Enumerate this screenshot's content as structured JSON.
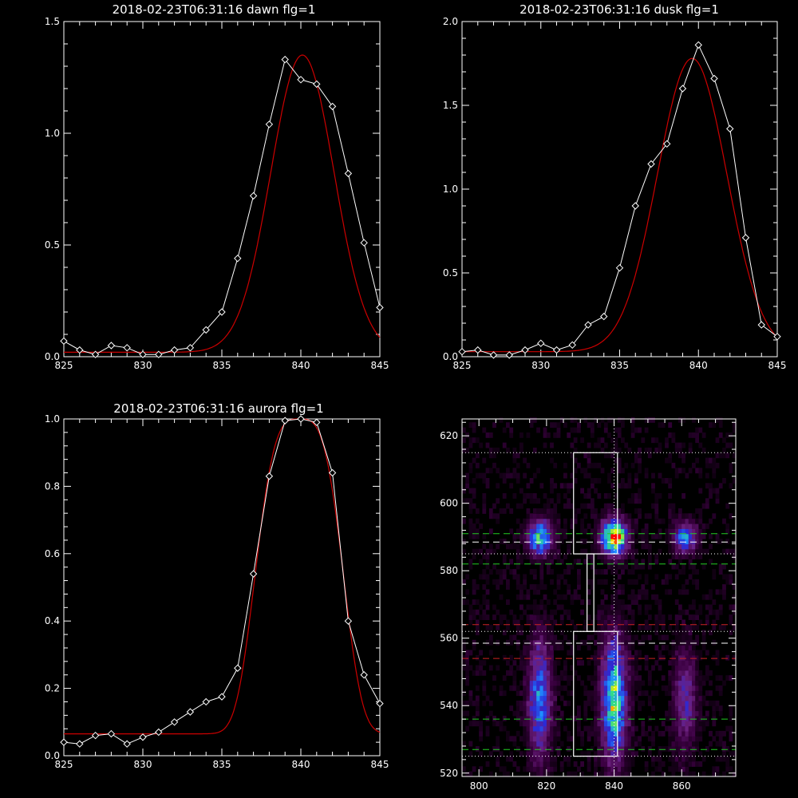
{
  "chart_data": [
    {
      "id": "dawn",
      "type": "line",
      "title": "2018-02-23T06:31:16 dawn flg=1",
      "xlim": [
        825,
        845
      ],
      "ylim": [
        0,
        1.5
      ],
      "xticks": [
        825,
        830,
        835,
        840,
        845
      ],
      "yticks": [
        0.0,
        0.5,
        1.0,
        1.5
      ],
      "ytick_labels": [
        "0.0",
        "0.5",
        "1.0",
        "1.5"
      ],
      "series": [
        {
          "role": "data",
          "color": "#ffffff",
          "marker": "diamond",
          "x": [
            825,
            826,
            827,
            828,
            829,
            830,
            831,
            832,
            833,
            834,
            835,
            836,
            837,
            838,
            839,
            840,
            841,
            842,
            843,
            844,
            845
          ],
          "y": [
            0.07,
            0.03,
            0.01,
            0.05,
            0.04,
            0.01,
            0.01,
            0.03,
            0.04,
            0.12,
            0.2,
            0.44,
            0.72,
            1.04,
            1.33,
            1.24,
            1.22,
            1.12,
            0.82,
            0.51,
            0.22
          ]
        },
        {
          "role": "fit",
          "color": "#cc0000",
          "model": "gaussian",
          "amp": 1.33,
          "center": 840.1,
          "sigma": 2.0,
          "offset": 0.02
        }
      ]
    },
    {
      "id": "dusk",
      "type": "line",
      "title": "2018-02-23T06:31:16 dusk flg=1",
      "xlim": [
        825,
        845
      ],
      "ylim": [
        0,
        2.0
      ],
      "xticks": [
        825,
        830,
        835,
        840,
        845
      ],
      "yticks": [
        0.0,
        0.5,
        1.0,
        1.5,
        2.0
      ],
      "ytick_labels": [
        "0.0",
        "0.5",
        "1.0",
        "1.5",
        "2.0"
      ],
      "series": [
        {
          "role": "data",
          "color": "#ffffff",
          "marker": "diamond",
          "x": [
            825,
            826,
            827,
            828,
            829,
            830,
            831,
            832,
            833,
            834,
            835,
            836,
            837,
            838,
            839,
            840,
            841,
            842,
            843,
            844,
            845
          ],
          "y": [
            0.03,
            0.04,
            0.01,
            0.01,
            0.04,
            0.08,
            0.04,
            0.07,
            0.19,
            0.24,
            0.53,
            0.9,
            1.15,
            1.27,
            1.6,
            1.86,
            1.66,
            1.36,
            0.71,
            0.19,
            0.12
          ]
        },
        {
          "role": "fit",
          "color": "#cc0000",
          "model": "gaussian",
          "amp": 1.75,
          "center": 839.6,
          "sigma": 2.2,
          "offset": 0.03
        }
      ]
    },
    {
      "id": "aurora",
      "type": "line",
      "title": "2018-02-23T06:31:16 aurora flg=1",
      "xlim": [
        825,
        845
      ],
      "ylim": [
        0,
        1.0
      ],
      "xticks": [
        825,
        830,
        835,
        840,
        845
      ],
      "yticks": [
        0.0,
        0.2,
        0.4,
        0.6,
        0.8,
        1.0
      ],
      "ytick_labels": [
        "0.0",
        "0.2",
        "0.4",
        "0.6",
        "0.8",
        "1.0"
      ],
      "series": [
        {
          "role": "data",
          "color": "#ffffff",
          "marker": "diamond",
          "x": [
            825,
            826,
            827,
            828,
            829,
            830,
            831,
            832,
            833,
            834,
            835,
            836,
            837,
            838,
            839,
            840,
            841,
            842,
            843,
            844,
            845
          ],
          "y": [
            0.04,
            0.035,
            0.06,
            0.065,
            0.035,
            0.055,
            0.07,
            0.1,
            0.13,
            0.16,
            0.175,
            0.26,
            0.54,
            0.83,
            0.995,
            1.0,
            0.99,
            0.84,
            0.4,
            0.24,
            0.155
          ]
        },
        {
          "role": "fit",
          "color": "#cc0000",
          "model": "supergaussian",
          "amp": 0.935,
          "center": 839.9,
          "sigma": 2.55,
          "power": 3.4,
          "offset": 0.065
        }
      ]
    },
    {
      "id": "image",
      "type": "heatmap",
      "xlim": [
        795,
        876
      ],
      "ylim": [
        519,
        625
      ],
      "xticks": [
        800,
        820,
        840,
        860
      ],
      "yticks": [
        520,
        540,
        560,
        580,
        600,
        620
      ],
      "colormap": [
        "#000000",
        "#3a0040",
        "#6b1f7e",
        "#2a2ad8",
        "#1e90ff",
        "#33dd88",
        "#f0f000",
        "#ff0000"
      ],
      "blobs": [
        {
          "x": 818,
          "y": 590,
          "sx": 2.5,
          "sy": 3.5,
          "amp": 0.62
        },
        {
          "x": 840,
          "y": 590,
          "sx": 2.5,
          "sy": 3.5,
          "amp": 0.98
        },
        {
          "x": 861,
          "y": 590,
          "sx": 2.3,
          "sy": 3.0,
          "amp": 0.55
        },
        {
          "x": 818,
          "y": 542,
          "sx": 2.3,
          "sy": 12,
          "amp": 0.5
        },
        {
          "x": 840,
          "y": 542,
          "sx": 2.5,
          "sy": 12,
          "amp": 0.72
        },
        {
          "x": 861,
          "y": 542,
          "sx": 2.3,
          "sy": 10,
          "amp": 0.32
        }
      ],
      "hlines": [
        {
          "y": 615,
          "color": "#ffffff",
          "style": "dotted"
        },
        {
          "y": 591,
          "color": "#22cc22",
          "style": "dashed"
        },
        {
          "y": 588.5,
          "color": "#ffffff",
          "style": "dashed"
        },
        {
          "y": 582,
          "color": "#22cc22",
          "style": "dashed"
        },
        {
          "y": 585,
          "color": "#ffffff",
          "style": "dotted"
        },
        {
          "y": 564,
          "color": "#cc2222",
          "style": "dashed"
        },
        {
          "y": 562,
          "color": "#ffffff",
          "style": "dotted"
        },
        {
          "y": 558.5,
          "color": "#ffffff",
          "style": "dashed"
        },
        {
          "y": 554,
          "color": "#cc2222",
          "style": "dashed"
        },
        {
          "y": 536,
          "color": "#22cc22",
          "style": "dashed"
        },
        {
          "y": 527,
          "color": "#22cc22",
          "style": "dashed"
        },
        {
          "y": 525,
          "color": "#ffffff",
          "style": "dotted"
        }
      ],
      "vline": {
        "x": 840,
        "color": "#ffffff",
        "style": "dotted"
      },
      "boxes": [
        {
          "x0": 828,
          "x1": 841,
          "y0": 585,
          "y1": 615,
          "color": "#ffffff"
        },
        {
          "x0": 832,
          "x1": 834,
          "y0": 562,
          "y1": 585,
          "color": "#ffffff"
        },
        {
          "x0": 828,
          "x1": 841,
          "y0": 525,
          "y1": 562,
          "color": "#ffffff"
        }
      ]
    }
  ]
}
